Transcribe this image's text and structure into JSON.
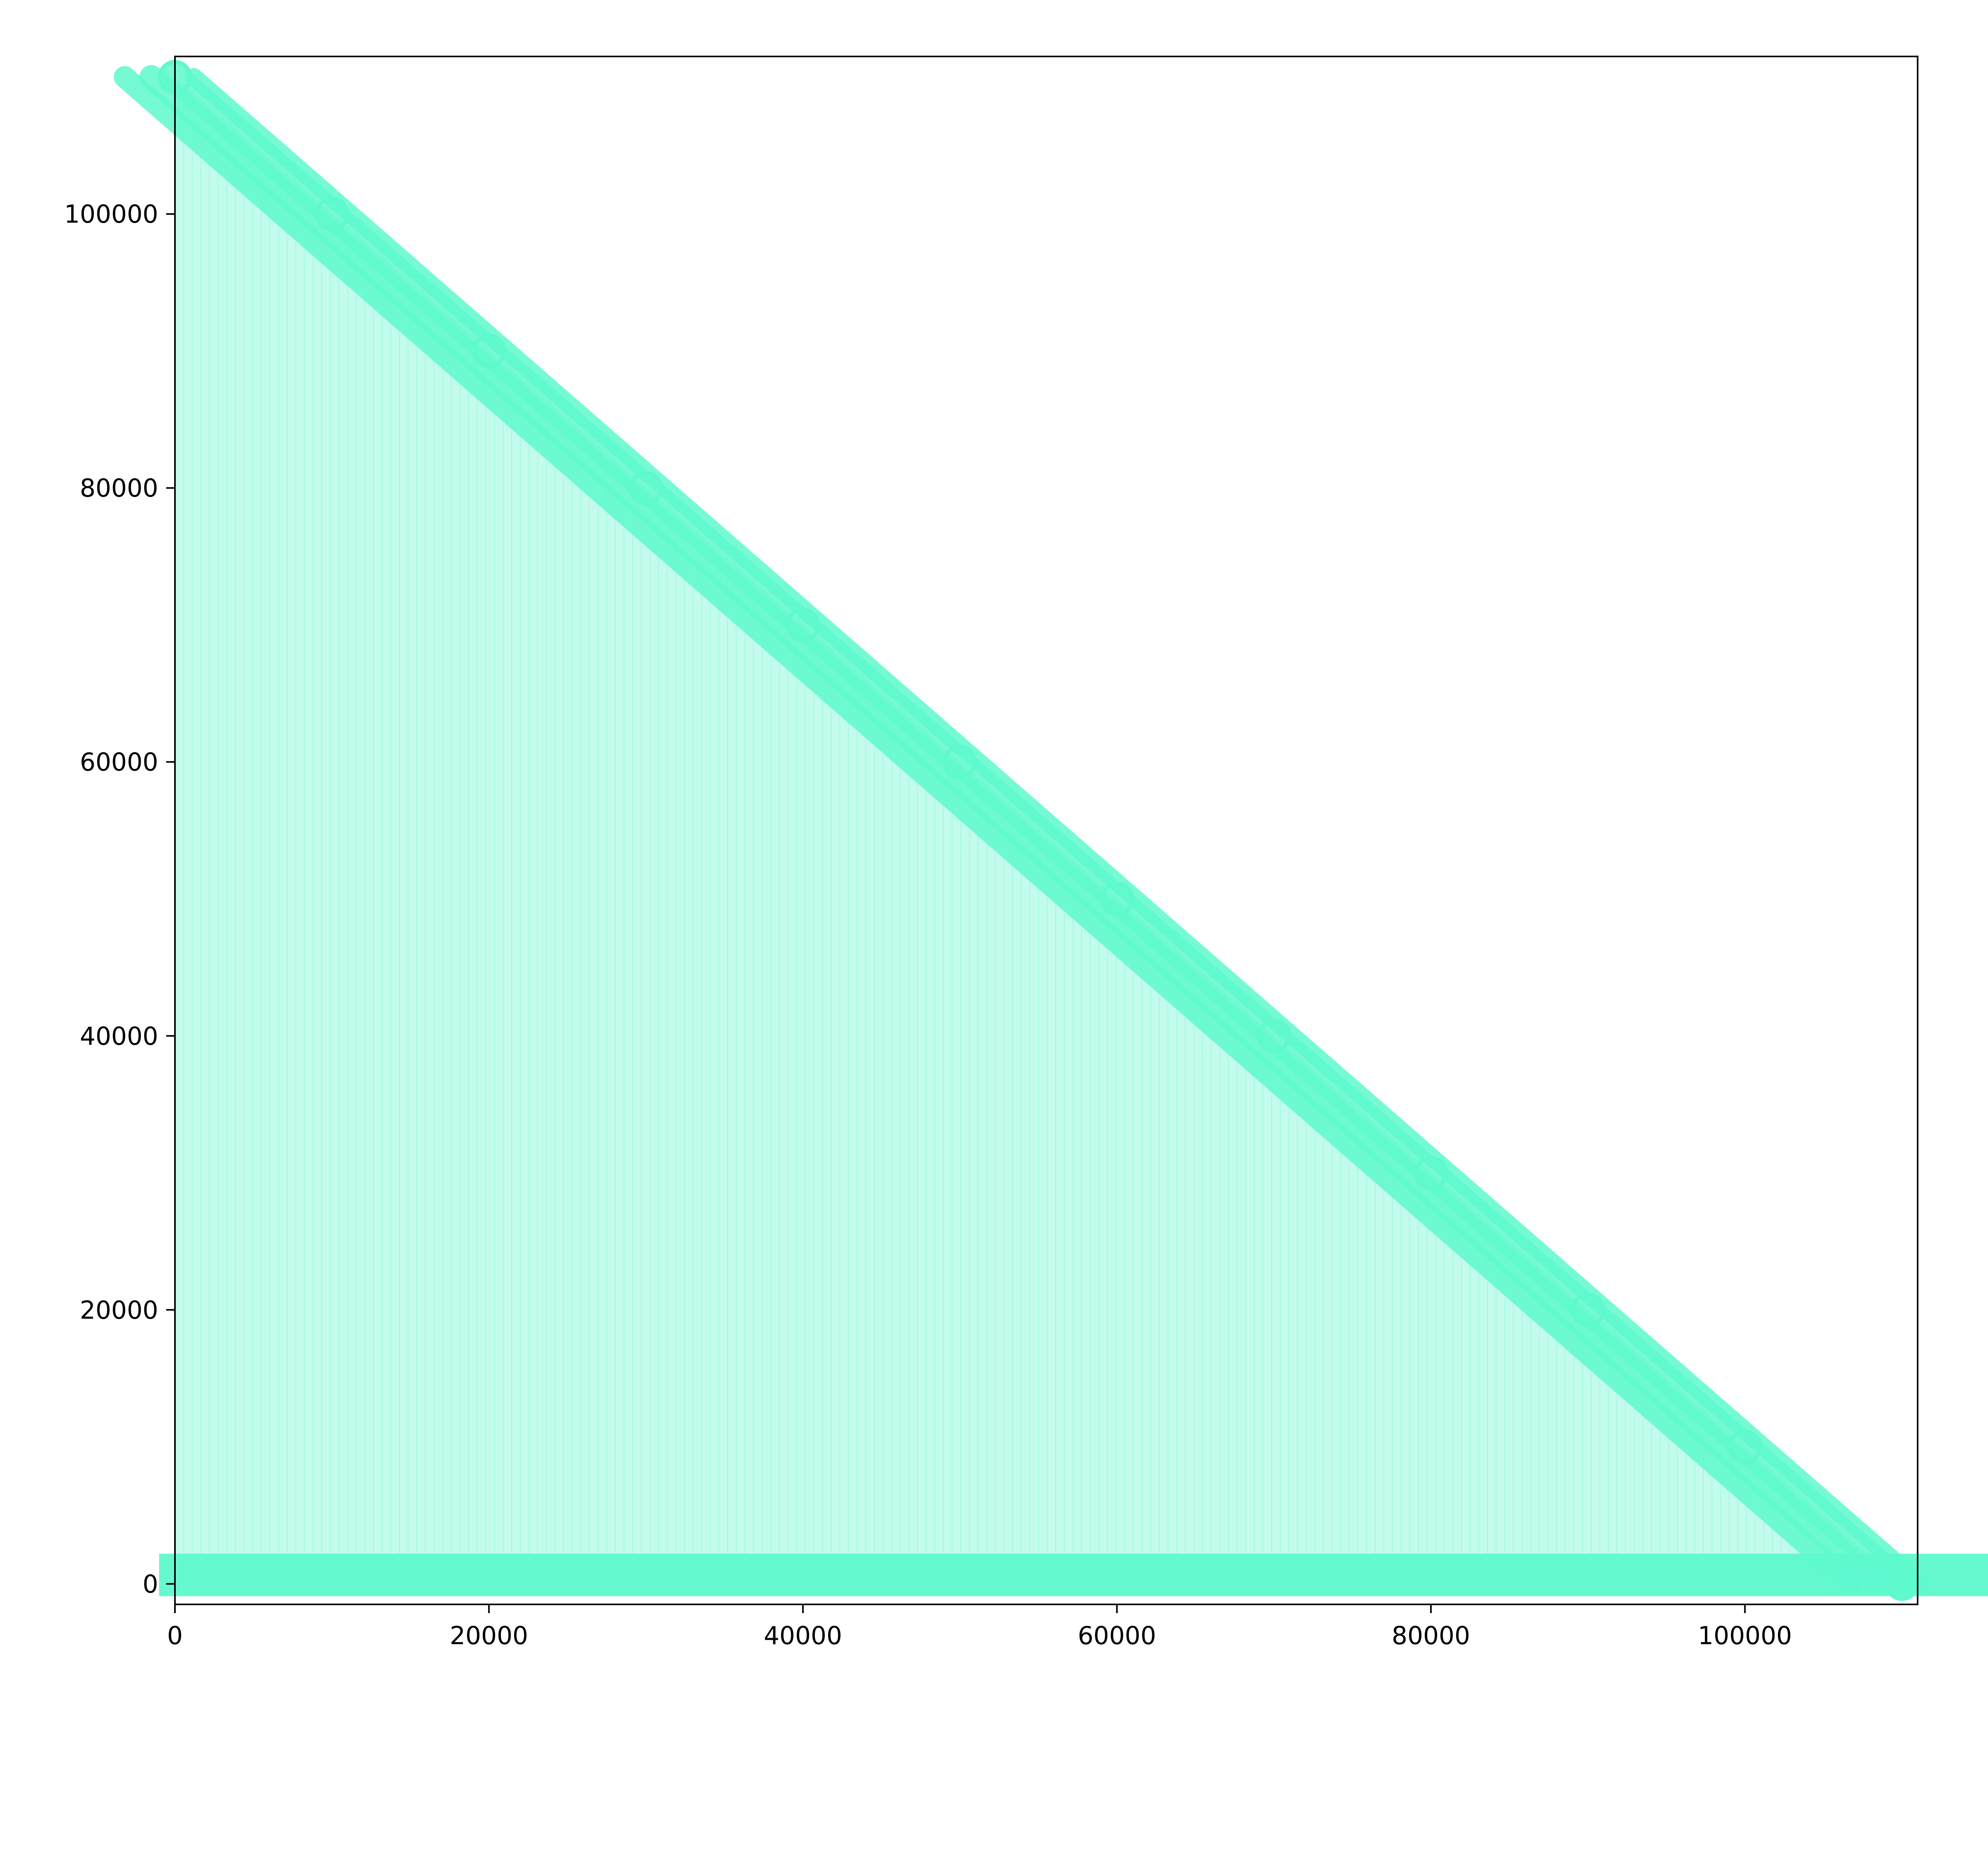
{
  "colors": {
    "series": "#5ef9cd",
    "series_fill": "#c3fcec",
    "axis": "#000000",
    "background": "#ffffff"
  },
  "chart_data": {
    "type": "area",
    "title": "",
    "xlabel": "",
    "ylabel": "",
    "xlim": [
      0,
      111000
    ],
    "ylim": [
      -1500,
      111500
    ],
    "grid": false,
    "legend": "none",
    "x_ticks": [
      0,
      20000,
      40000,
      60000,
      80000,
      100000
    ],
    "x_tick_labels": [
      "0",
      "20000",
      "40000",
      "60000",
      "80000",
      "100000"
    ],
    "y_ticks": [
      0,
      20000,
      40000,
      60000,
      80000,
      100000
    ],
    "y_tick_labels": [
      "0",
      "20000",
      "40000",
      "60000",
      "80000",
      "100000"
    ],
    "series": [
      {
        "x": [
          0,
          10000,
          20000,
          30000,
          40000,
          50000,
          60000,
          70000,
          80000,
          90000,
          100000,
          110000
        ],
        "values": [
          110000,
          100000,
          90000,
          80000,
          70000,
          60000,
          50000,
          40000,
          30000,
          20000,
          10000,
          0
        ]
      }
    ]
  }
}
